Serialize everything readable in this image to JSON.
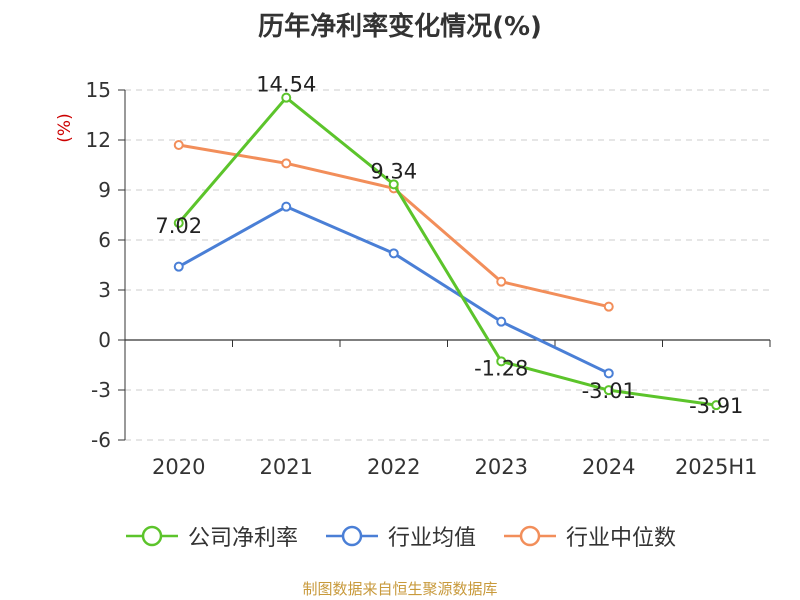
{
  "chart_data": {
    "type": "line",
    "title": "历年净利率变化情况(%)",
    "ylabel": "(%)",
    "xlabel": "",
    "categories": [
      "2020",
      "2021",
      "2022",
      "2023",
      "2024",
      "2025H1"
    ],
    "ylim": [
      -6,
      15
    ],
    "yticks": [
      15,
      12,
      9,
      6,
      3,
      0,
      -3,
      -6
    ],
    "ytick_labels": [
      "15",
      "12",
      "9",
      "6",
      "3",
      "0",
      "-3",
      "-6"
    ],
    "grid": true,
    "legend_position": "bottom",
    "series": [
      {
        "name": "公司净利率",
        "color": "#5cc42b",
        "values": [
          7.02,
          14.54,
          9.34,
          -1.28,
          -3.01,
          -3.91
        ],
        "data_labels": [
          "7.02",
          "14.54",
          "9.34",
          "-1.28",
          "-3.01",
          "-3.91"
        ]
      },
      {
        "name": "行业均值",
        "color": "#4a7fd6",
        "values": [
          4.4,
          8.0,
          5.2,
          1.1,
          -2.0,
          null
        ]
      },
      {
        "name": "行业中位数",
        "color": "#f28e5a",
        "values": [
          11.7,
          10.6,
          9.1,
          3.5,
          2.0,
          null
        ]
      }
    ]
  },
  "source_text": "制图数据来自恒生聚源数据库"
}
